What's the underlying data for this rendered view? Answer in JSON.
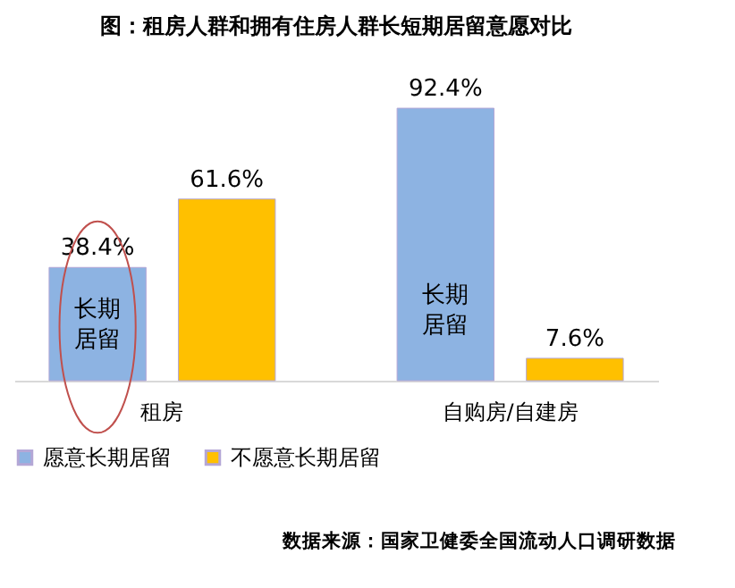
{
  "chart_data": {
    "type": "bar",
    "title": "图：租房人群和拥有住房人群长短期居留意愿对比",
    "categories": [
      "租房",
      "自购房/自建房"
    ],
    "series": [
      {
        "name": "愿意长期居留",
        "color": "#8db3e2",
        "values": [
          38.4,
          92.4
        ],
        "value_labels": [
          "38.4%",
          "92.4%"
        ]
      },
      {
        "name": "不愿意长期居留",
        "color": "#ffc000",
        "values": [
          61.6,
          7.6
        ],
        "value_labels": [
          "61.6%",
          "7.6%"
        ]
      }
    ],
    "annotations": [
      "长期居留",
      "长期居留",
      "数据来源：国家卫健委全国流动人口调研数据"
    ],
    "legend": "bottom",
    "grid": false
  }
}
